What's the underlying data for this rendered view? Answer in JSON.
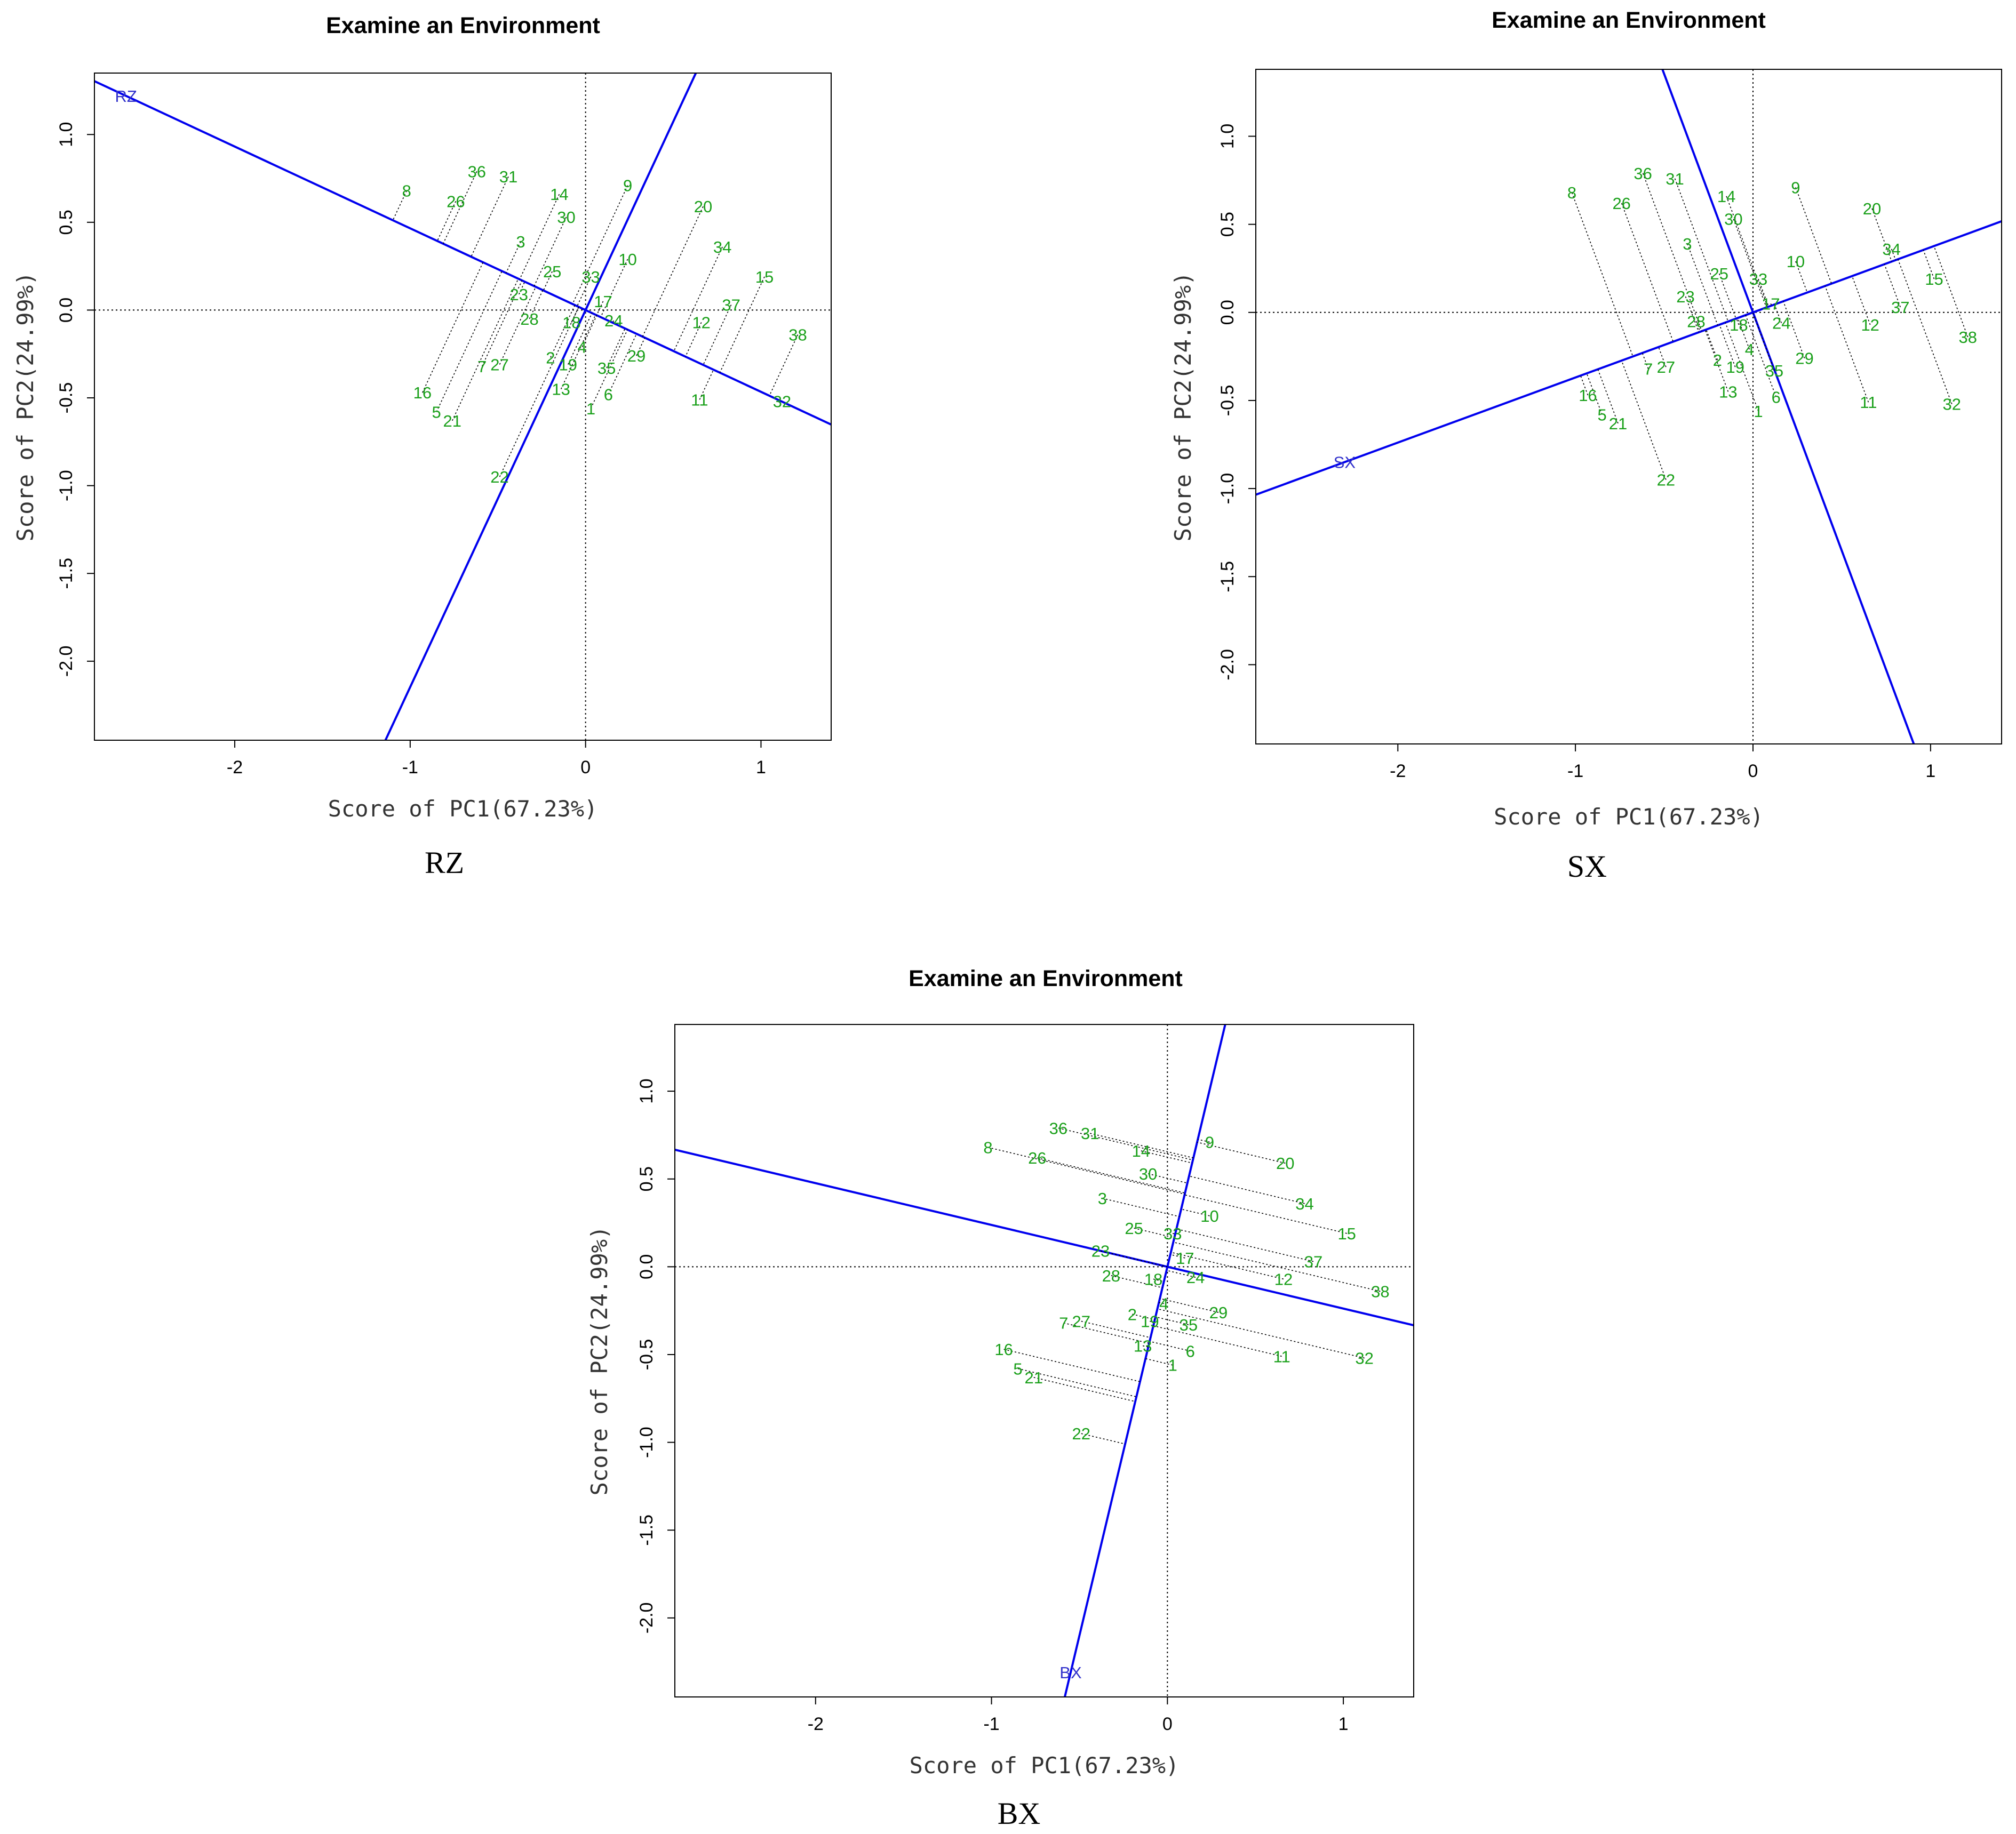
{
  "colors": {
    "genotype": "#1aa01a",
    "axis_line": "#0000ee",
    "environment": "#3333cc",
    "projection": "#000000"
  },
  "chart_data": [
    {
      "type": "scatter",
      "title": "Examine an Environment",
      "caption": "RZ",
      "xlabel": "Score of PC1(67.23%)",
      "ylabel": "Score of PC2(24.99%)",
      "xlim": [
        -2.8,
        1.4
      ],
      "ylim": [
        -2.45,
        1.35
      ],
      "xticks": [
        "-2",
        "-1",
        "0",
        "1"
      ],
      "yticks": [
        "-2.0",
        "-1.5",
        "-1.0",
        "-0.5",
        "0.0",
        "0.5",
        "1.0"
      ],
      "environment": {
        "name": "RZ",
        "x": -2.62,
        "y": 1.22
      },
      "genotypes": [
        {
          "label": "8",
          "x": -1.02,
          "y": 0.68
        },
        {
          "label": "36",
          "x": -0.62,
          "y": 0.79
        },
        {
          "label": "31",
          "x": -0.44,
          "y": 0.76
        },
        {
          "label": "26",
          "x": -0.74,
          "y": 0.62
        },
        {
          "label": "14",
          "x": -0.15,
          "y": 0.66
        },
        {
          "label": "9",
          "x": 0.24,
          "y": 0.71
        },
        {
          "label": "30",
          "x": -0.11,
          "y": 0.53
        },
        {
          "label": "20",
          "x": 0.67,
          "y": 0.59
        },
        {
          "label": "3",
          "x": -0.37,
          "y": 0.39
        },
        {
          "label": "34",
          "x": 0.78,
          "y": 0.36
        },
        {
          "label": "10",
          "x": 0.24,
          "y": 0.29
        },
        {
          "label": "25",
          "x": -0.19,
          "y": 0.22
        },
        {
          "label": "33",
          "x": 0.03,
          "y": 0.19
        },
        {
          "label": "15",
          "x": 1.02,
          "y": 0.19
        },
        {
          "label": "23",
          "x": -0.38,
          "y": 0.09
        },
        {
          "label": "17",
          "x": 0.1,
          "y": 0.05
        },
        {
          "label": "37",
          "x": 0.83,
          "y": 0.03
        },
        {
          "label": "28",
          "x": -0.32,
          "y": -0.05
        },
        {
          "label": "18",
          "x": -0.08,
          "y": -0.07
        },
        {
          "label": "24",
          "x": 0.16,
          "y": -0.06
        },
        {
          "label": "12",
          "x": 0.66,
          "y": -0.07
        },
        {
          "label": "38",
          "x": 1.21,
          "y": -0.14
        },
        {
          "label": "4",
          "x": -0.02,
          "y": -0.21
        },
        {
          "label": "29",
          "x": 0.29,
          "y": -0.26
        },
        {
          "label": "2",
          "x": -0.2,
          "y": -0.27
        },
        {
          "label": "19",
          "x": -0.1,
          "y": -0.31
        },
        {
          "label": "7",
          "x": -0.59,
          "y": -0.32
        },
        {
          "label": "27",
          "x": -0.49,
          "y": -0.31
        },
        {
          "label": "35",
          "x": 0.12,
          "y": -0.33
        },
        {
          "label": "13",
          "x": -0.14,
          "y": -0.45
        },
        {
          "label": "16",
          "x": -0.93,
          "y": -0.47
        },
        {
          "label": "6",
          "x": 0.13,
          "y": -0.48
        },
        {
          "label": "11",
          "x": 0.65,
          "y": -0.51
        },
        {
          "label": "32",
          "x": 1.12,
          "y": -0.52
        },
        {
          "label": "1",
          "x": 0.03,
          "y": -0.56
        },
        {
          "label": "5",
          "x": -0.85,
          "y": -0.58
        },
        {
          "label": "21",
          "x": -0.76,
          "y": -0.63
        },
        {
          "label": "22",
          "x": -0.49,
          "y": -0.95
        }
      ]
    },
    {
      "type": "scatter",
      "title": "Examine an Environment",
      "caption": "SX",
      "xlabel": "Score of PC1(67.23%)",
      "ylabel": "Score of PC2(24.99%)",
      "xlim": [
        -2.8,
        1.4
      ],
      "ylim": [
        -2.45,
        1.38
      ],
      "xticks": [
        "-2",
        "-1",
        "0",
        "1"
      ],
      "yticks": [
        "-2.0",
        "-1.5",
        "-1.0",
        "-0.5",
        "0.0",
        "0.5",
        "1.0"
      ],
      "environment": {
        "name": "SX",
        "x": -2.3,
        "y": -0.85
      },
      "genotypes": [
        {
          "label": "8",
          "x": -1.02,
          "y": 0.68
        },
        {
          "label": "36",
          "x": -0.62,
          "y": 0.79
        },
        {
          "label": "31",
          "x": -0.44,
          "y": 0.76
        },
        {
          "label": "26",
          "x": -0.74,
          "y": 0.62
        },
        {
          "label": "14",
          "x": -0.15,
          "y": 0.66
        },
        {
          "label": "9",
          "x": 0.24,
          "y": 0.71
        },
        {
          "label": "30",
          "x": -0.11,
          "y": 0.53
        },
        {
          "label": "20",
          "x": 0.67,
          "y": 0.59
        },
        {
          "label": "3",
          "x": -0.37,
          "y": 0.39
        },
        {
          "label": "34",
          "x": 0.78,
          "y": 0.36
        },
        {
          "label": "10",
          "x": 0.24,
          "y": 0.29
        },
        {
          "label": "25",
          "x": -0.19,
          "y": 0.22
        },
        {
          "label": "33",
          "x": 0.03,
          "y": 0.19
        },
        {
          "label": "15",
          "x": 1.02,
          "y": 0.19
        },
        {
          "label": "23",
          "x": -0.38,
          "y": 0.09
        },
        {
          "label": "17",
          "x": 0.1,
          "y": 0.05
        },
        {
          "label": "37",
          "x": 0.83,
          "y": 0.03
        },
        {
          "label": "28",
          "x": -0.32,
          "y": -0.05
        },
        {
          "label": "18",
          "x": -0.08,
          "y": -0.07
        },
        {
          "label": "24",
          "x": 0.16,
          "y": -0.06
        },
        {
          "label": "12",
          "x": 0.66,
          "y": -0.07
        },
        {
          "label": "38",
          "x": 1.21,
          "y": -0.14
        },
        {
          "label": "4",
          "x": -0.02,
          "y": -0.21
        },
        {
          "label": "29",
          "x": 0.29,
          "y": -0.26
        },
        {
          "label": "2",
          "x": -0.2,
          "y": -0.27
        },
        {
          "label": "19",
          "x": -0.1,
          "y": -0.31
        },
        {
          "label": "7",
          "x": -0.59,
          "y": -0.32
        },
        {
          "label": "27",
          "x": -0.49,
          "y": -0.31
        },
        {
          "label": "35",
          "x": 0.12,
          "y": -0.33
        },
        {
          "label": "13",
          "x": -0.14,
          "y": -0.45
        },
        {
          "label": "16",
          "x": -0.93,
          "y": -0.47
        },
        {
          "label": "6",
          "x": 0.13,
          "y": -0.48
        },
        {
          "label": "11",
          "x": 0.65,
          "y": -0.51
        },
        {
          "label": "32",
          "x": 1.12,
          "y": -0.52
        },
        {
          "label": "1",
          "x": 0.03,
          "y": -0.56
        },
        {
          "label": "5",
          "x": -0.85,
          "y": -0.58
        },
        {
          "label": "21",
          "x": -0.76,
          "y": -0.63
        },
        {
          "label": "22",
          "x": -0.49,
          "y": -0.95
        }
      ]
    },
    {
      "type": "scatter",
      "title": "Examine an Environment",
      "caption": "BX",
      "xlabel": "Score of PC1(67.23%)",
      "ylabel": "Score of PC2(24.99%)",
      "xlim": [
        -2.8,
        1.4
      ],
      "ylim": [
        -2.45,
        1.38
      ],
      "xticks": [
        "-2",
        "-1",
        "0",
        "1"
      ],
      "yticks": [
        "-2.0",
        "-1.5",
        "-1.0",
        "-0.5",
        "0.0",
        "0.5",
        "1.0"
      ],
      "environment": {
        "name": "BX",
        "x": -0.55,
        "y": -2.31
      },
      "genotypes": [
        {
          "label": "8",
          "x": -1.02,
          "y": 0.68
        },
        {
          "label": "36",
          "x": -0.62,
          "y": 0.79
        },
        {
          "label": "31",
          "x": -0.44,
          "y": 0.76
        },
        {
          "label": "26",
          "x": -0.74,
          "y": 0.62
        },
        {
          "label": "14",
          "x": -0.15,
          "y": 0.66
        },
        {
          "label": "9",
          "x": 0.24,
          "y": 0.71
        },
        {
          "label": "30",
          "x": -0.11,
          "y": 0.53
        },
        {
          "label": "20",
          "x": 0.67,
          "y": 0.59
        },
        {
          "label": "3",
          "x": -0.37,
          "y": 0.39
        },
        {
          "label": "34",
          "x": 0.78,
          "y": 0.36
        },
        {
          "label": "10",
          "x": 0.24,
          "y": 0.29
        },
        {
          "label": "25",
          "x": -0.19,
          "y": 0.22
        },
        {
          "label": "33",
          "x": 0.03,
          "y": 0.19
        },
        {
          "label": "15",
          "x": 1.02,
          "y": 0.19
        },
        {
          "label": "23",
          "x": -0.38,
          "y": 0.09
        },
        {
          "label": "17",
          "x": 0.1,
          "y": 0.05
        },
        {
          "label": "37",
          "x": 0.83,
          "y": 0.03
        },
        {
          "label": "28",
          "x": -0.32,
          "y": -0.05
        },
        {
          "label": "18",
          "x": -0.08,
          "y": -0.07
        },
        {
          "label": "24",
          "x": 0.16,
          "y": -0.06
        },
        {
          "label": "12",
          "x": 0.66,
          "y": -0.07
        },
        {
          "label": "38",
          "x": 1.21,
          "y": -0.14
        },
        {
          "label": "4",
          "x": -0.02,
          "y": -0.21
        },
        {
          "label": "29",
          "x": 0.29,
          "y": -0.26
        },
        {
          "label": "2",
          "x": -0.2,
          "y": -0.27
        },
        {
          "label": "19",
          "x": -0.1,
          "y": -0.31
        },
        {
          "label": "7",
          "x": -0.59,
          "y": -0.32
        },
        {
          "label": "27",
          "x": -0.49,
          "y": -0.31
        },
        {
          "label": "35",
          "x": 0.12,
          "y": -0.33
        },
        {
          "label": "13",
          "x": -0.14,
          "y": -0.45
        },
        {
          "label": "16",
          "x": -0.93,
          "y": -0.47
        },
        {
          "label": "6",
          "x": 0.13,
          "y": -0.48
        },
        {
          "label": "11",
          "x": 0.65,
          "y": -0.51
        },
        {
          "label": "32",
          "x": 1.12,
          "y": -0.52
        },
        {
          "label": "1",
          "x": 0.03,
          "y": -0.56
        },
        {
          "label": "5",
          "x": -0.85,
          "y": -0.58
        },
        {
          "label": "21",
          "x": -0.76,
          "y": -0.63
        },
        {
          "label": "22",
          "x": -0.49,
          "y": -0.95
        }
      ]
    }
  ]
}
